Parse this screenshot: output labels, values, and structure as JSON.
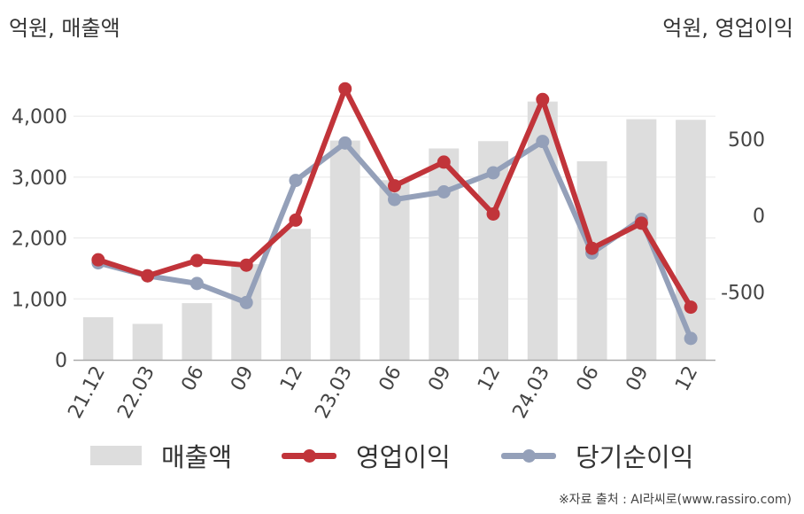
{
  "chart_data": {
    "type": "bar+line",
    "unit_left": "억원, 매출액",
    "unit_right": "억원, 영업이익",
    "categories": [
      "21.12",
      "22.03",
      "06",
      "09",
      "12",
      "23.03",
      "06",
      "09",
      "12",
      "24.03",
      "06",
      "09",
      "12"
    ],
    "y_left": {
      "ticks": [
        "0",
        "1,000",
        "2,000",
        "3,000",
        "4,000"
      ],
      "tick_values": [
        0,
        1000,
        2000,
        3000,
        4000
      ],
      "ylim": [
        0,
        4700
      ]
    },
    "y_right": {
      "ticks": [
        "-500",
        "0",
        "500"
      ],
      "tick_values": [
        -500,
        0,
        500
      ],
      "ylim": [
        -945,
        930
      ]
    },
    "grid": true,
    "legend_position": "bottom",
    "series": [
      {
        "name": "매출액",
        "type": "bar",
        "axis": "left",
        "color": "#dddddd",
        "values": [
          700,
          590,
          930,
          1570,
          2150,
          3600,
          2950,
          3470,
          3590,
          4240,
          3260,
          3950,
          3940
        ]
      },
      {
        "name": "영업이익",
        "type": "line",
        "axis": "right",
        "color": "#c1343a",
        "values": [
          -290,
          -395,
          -295,
          -325,
          -30,
          830,
          195,
          350,
          10,
          760,
          -215,
          -50,
          -600
        ]
      },
      {
        "name": "당기순이익",
        "type": "line",
        "axis": "right",
        "color": "#94a0b9",
        "values": [
          -310,
          -395,
          -445,
          -570,
          230,
          475,
          105,
          155,
          280,
          485,
          -245,
          -25,
          -805
        ]
      }
    ]
  },
  "source": "※자료 출처 : AI라씨로(www.rassiro.com)"
}
